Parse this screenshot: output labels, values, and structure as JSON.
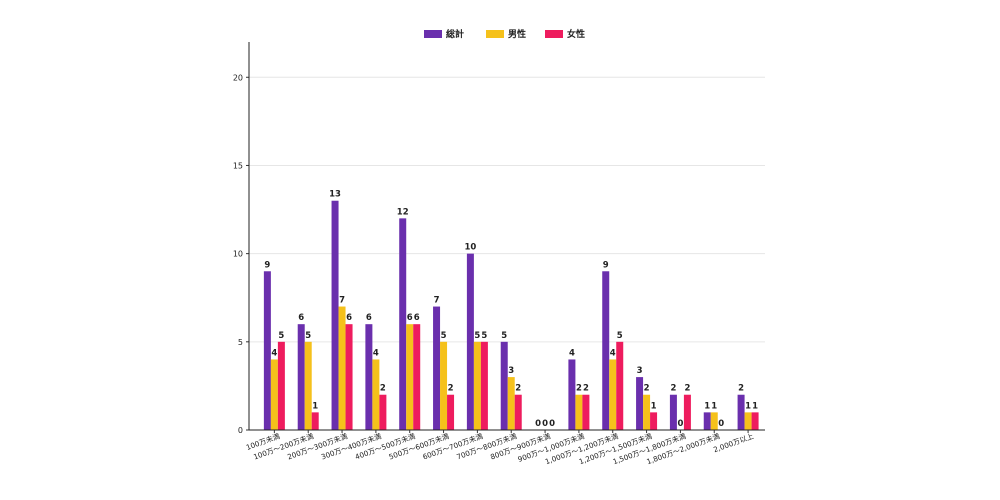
{
  "chart_data": {
    "type": "bar",
    "categories": [
      "100万未満",
      "100万～200万未満",
      "200万～300万未満",
      "300万～400万未満",
      "400万～500万未満",
      "500万～600万未満",
      "600万～700万未満",
      "700万～800万未満",
      "800万～900万未満",
      "900万～1,000万未満",
      "1,000万～1,200万未満",
      "1,200万～1,500万未満",
      "1,500万～1,800万未満",
      "1,800万～2,000万未満",
      "2,000万以上"
    ],
    "series": [
      {
        "name": "総計",
        "color": "#6a2fad",
        "values": [
          9,
          6,
          13,
          6,
          12,
          7,
          10,
          5,
          0,
          4,
          9,
          3,
          2,
          1,
          2
        ]
      },
      {
        "name": "男性",
        "color": "#f5c11b",
        "values": [
          4,
          5,
          7,
          4,
          6,
          5,
          5,
          3,
          0,
          2,
          4,
          2,
          0,
          1,
          1
        ]
      },
      {
        "name": "女性",
        "color": "#ee1c5e",
        "values": [
          5,
          1,
          6,
          2,
          6,
          2,
          5,
          2,
          0,
          2,
          5,
          1,
          2,
          0,
          1
        ]
      }
    ],
    "yticks": [
      0,
      5,
      10,
      15,
      20
    ],
    "ylim": [
      0,
      22
    ],
    "grid": "horizontal",
    "legend_position": "top-center",
    "data_labels": true
  }
}
